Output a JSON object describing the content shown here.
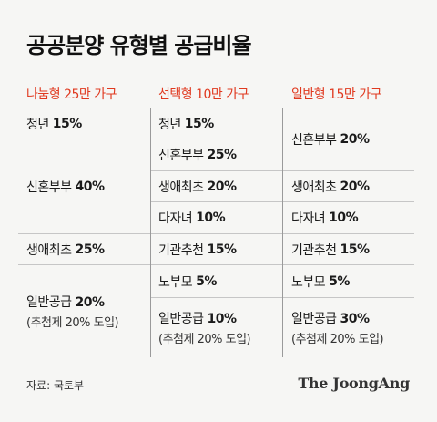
{
  "title": "공공분양 유형별 공급비율",
  "headers": [
    "나눔형 25만 가구",
    "선택형 10만 가구",
    "일반형 15만 가구"
  ],
  "col1": {
    "youth": {
      "label": "청년",
      "pct": "15%"
    },
    "newlywed": {
      "label": "신혼부부",
      "pct": "40%"
    },
    "first_time": {
      "label": "생애최초",
      "pct": "25%"
    },
    "general": {
      "label": "일반공급",
      "pct": "20%",
      "note": "(추첨제 20% 도입)"
    }
  },
  "col2": {
    "youth": {
      "label": "청년",
      "pct": "15%"
    },
    "newlywed": {
      "label": "신혼부부",
      "pct": "25%"
    },
    "first_time": {
      "label": "생애최초",
      "pct": "20%"
    },
    "multi_child": {
      "label": "다자녀",
      "pct": "10%"
    },
    "institution": {
      "label": "기관추천",
      "pct": "15%"
    },
    "elderly_parents": {
      "label": "노부모",
      "pct": "5%"
    },
    "general": {
      "label": "일반공급",
      "pct": "10%",
      "note": "(추첨제 20% 도입)"
    }
  },
  "col3": {
    "newlywed": {
      "label": "신혼부부",
      "pct": "20%"
    },
    "first_time": {
      "label": "생애최초",
      "pct": "20%"
    },
    "multi_child": {
      "label": "다자녀",
      "pct": "10%"
    },
    "institution": {
      "label": "기관추천",
      "pct": "15%"
    },
    "elderly_parents": {
      "label": "노부모",
      "pct": "5%"
    },
    "general": {
      "label": "일반공급",
      "pct": "30%",
      "note": "(추첨제 20% 도입)"
    }
  },
  "source": "자료: 국토부",
  "brand": "The JoongAng",
  "colors": {
    "accent": "#e0391f",
    "background": "#f6f6f4",
    "text": "#1a1a1a"
  }
}
